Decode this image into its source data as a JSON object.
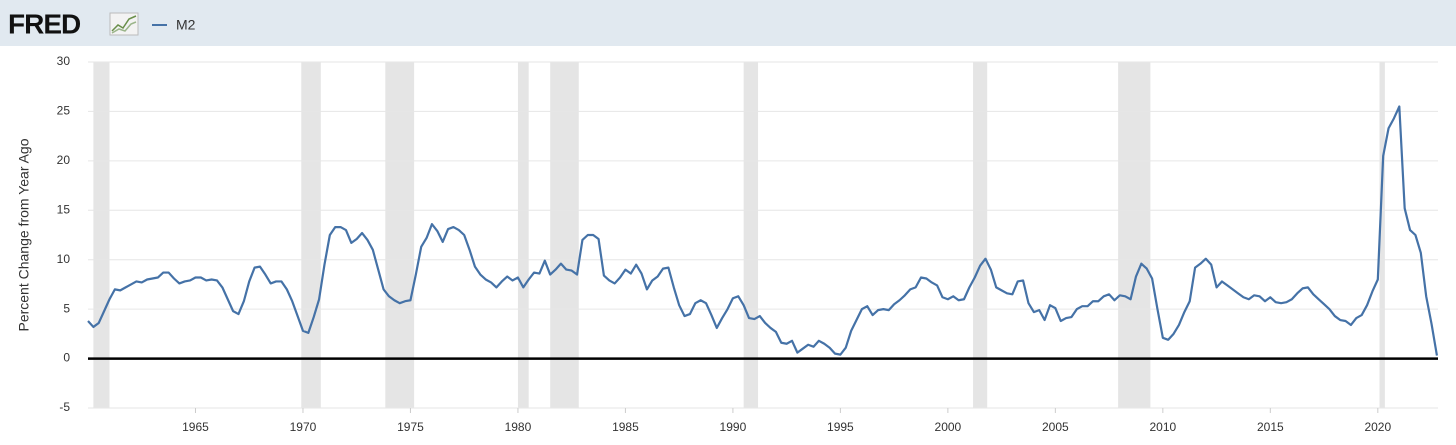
{
  "logo": "FRED",
  "chart_data": {
    "type": "line",
    "ylabel": "Percent Change from Year Ago",
    "x": [
      1960,
      1960.25,
      1960.5,
      1960.75,
      1961,
      1961.25,
      1961.5,
      1961.75,
      1962,
      1962.25,
      1962.5,
      1962.75,
      1963,
      1963.25,
      1963.5,
      1963.75,
      1964,
      1964.25,
      1964.5,
      1964.75,
      1965,
      1965.25,
      1965.5,
      1965.75,
      1966,
      1966.25,
      1966.5,
      1966.75,
      1967,
      1967.25,
      1967.5,
      1967.75,
      1968,
      1968.25,
      1968.5,
      1968.75,
      1969,
      1969.25,
      1969.5,
      1969.75,
      1970,
      1970.25,
      1970.5,
      1970.75,
      1971,
      1971.25,
      1971.5,
      1971.75,
      1972,
      1972.25,
      1972.5,
      1972.75,
      1973,
      1973.25,
      1973.5,
      1973.75,
      1974,
      1974.25,
      1974.5,
      1974.75,
      1975,
      1975.25,
      1975.5,
      1975.75,
      1976,
      1976.25,
      1976.5,
      1976.75,
      1977,
      1977.25,
      1977.5,
      1977.75,
      1978,
      1978.25,
      1978.5,
      1978.75,
      1979,
      1979.25,
      1979.5,
      1979.75,
      1980,
      1980.25,
      1980.5,
      1980.75,
      1981,
      1981.25,
      1981.5,
      1981.75,
      1982,
      1982.25,
      1982.5,
      1982.75,
      1983,
      1983.25,
      1983.5,
      1983.75,
      1984,
      1984.25,
      1984.5,
      1984.75,
      1985,
      1985.25,
      1985.5,
      1985.75,
      1986,
      1986.25,
      1986.5,
      1986.75,
      1987,
      1987.25,
      1987.5,
      1987.75,
      1988,
      1988.25,
      1988.5,
      1988.75,
      1989,
      1989.25,
      1989.5,
      1989.75,
      1990,
      1990.25,
      1990.5,
      1990.75,
      1991,
      1991.25,
      1991.5,
      1991.75,
      1992,
      1992.25,
      1992.5,
      1992.75,
      1993,
      1993.25,
      1993.5,
      1993.75,
      1994,
      1994.25,
      1994.5,
      1994.75,
      1995,
      1995.25,
      1995.5,
      1995.75,
      1996,
      1996.25,
      1996.5,
      1996.75,
      1997,
      1997.25,
      1997.5,
      1997.75,
      1998,
      1998.25,
      1998.5,
      1998.75,
      1999,
      1999.25,
      1999.5,
      1999.75,
      2000,
      2000.25,
      2000.5,
      2000.75,
      2001,
      2001.25,
      2001.5,
      2001.75,
      2002,
      2002.25,
      2002.5,
      2002.75,
      2003,
      2003.25,
      2003.5,
      2003.75,
      2004,
      2004.25,
      2004.5,
      2004.75,
      2005,
      2005.25,
      2005.5,
      2005.75,
      2006,
      2006.25,
      2006.5,
      2006.75,
      2007,
      2007.25,
      2007.5,
      2007.75,
      2008,
      2008.25,
      2008.5,
      2008.75,
      2009,
      2009.25,
      2009.5,
      2009.75,
      2010,
      2010.25,
      2010.5,
      2010.75,
      2011,
      2011.25,
      2011.5,
      2011.75,
      2012,
      2012.25,
      2012.5,
      2012.75,
      2013,
      2013.25,
      2013.5,
      2013.75,
      2014,
      2014.25,
      2014.5,
      2014.75,
      2015,
      2015.25,
      2015.5,
      2015.75,
      2016,
      2016.25,
      2016.5,
      2016.75,
      2017,
      2017.25,
      2017.5,
      2017.75,
      2018,
      2018.25,
      2018.5,
      2018.75,
      2019,
      2019.25,
      2019.5,
      2019.75,
      2020,
      2020.25,
      2020.5,
      2020.75,
      2021,
      2021.25,
      2021.5,
      2021.75,
      2022,
      2022.25,
      2022.5,
      2022.75
    ],
    "series": [
      {
        "name": "M2",
        "color": "#4572a7",
        "values": [
          3.8,
          3.2,
          3.6,
          4.8,
          6.0,
          7.0,
          6.9,
          7.2,
          7.5,
          7.8,
          7.7,
          8.0,
          8.1,
          8.2,
          8.7,
          8.7,
          8.1,
          7.6,
          7.8,
          7.9,
          8.2,
          8.2,
          7.9,
          8.0,
          7.9,
          7.2,
          6.0,
          4.8,
          4.5,
          5.8,
          7.8,
          9.2,
          9.3,
          8.5,
          7.6,
          7.8,
          7.8,
          7.0,
          5.8,
          4.3,
          2.8,
          2.6,
          4.2,
          6.0,
          9.5,
          12.5,
          13.3,
          13.3,
          13.0,
          11.7,
          12.1,
          12.7,
          12.0,
          11.0,
          9.0,
          7.0,
          6.3,
          5.9,
          5.6,
          5.8,
          5.9,
          8.5,
          11.3,
          12.2,
          13.6,
          12.9,
          11.8,
          13.1,
          13.3,
          13.0,
          12.5,
          11.0,
          9.3,
          8.5,
          8.0,
          7.7,
          7.2,
          7.8,
          8.3,
          7.9,
          8.2,
          7.2,
          8.0,
          8.7,
          8.6,
          9.9,
          8.5,
          9.0,
          9.6,
          9.0,
          8.9,
          8.5,
          12.0,
          12.5,
          12.5,
          12.1,
          8.4,
          7.9,
          7.6,
          8.2,
          9.0,
          8.6,
          9.5,
          8.6,
          7.0,
          7.9,
          8.3,
          9.1,
          9.2,
          7.2,
          5.4,
          4.3,
          4.5,
          5.6,
          5.9,
          5.6,
          4.4,
          3.1,
          4.1,
          5.0,
          6.1,
          6.3,
          5.4,
          4.1,
          4.0,
          4.3,
          3.6,
          3.1,
          2.7,
          1.6,
          1.5,
          1.8,
          0.6,
          1.0,
          1.4,
          1.2,
          1.8,
          1.5,
          1.1,
          0.5,
          0.4,
          1.1,
          2.8,
          3.9,
          5.0,
          5.3,
          4.4,
          4.9,
          5.0,
          4.9,
          5.5,
          5.9,
          6.4,
          7.0,
          7.2,
          8.2,
          8.1,
          7.7,
          7.4,
          6.2,
          6.0,
          6.3,
          5.9,
          6.0,
          7.2,
          8.2,
          9.4,
          10.1,
          9.0,
          7.2,
          6.9,
          6.6,
          6.5,
          7.8,
          7.9,
          5.6,
          4.7,
          4.9,
          3.9,
          5.4,
          5.1,
          3.8,
          4.1,
          4.2,
          5.0,
          5.3,
          5.3,
          5.8,
          5.8,
          6.3,
          6.5,
          5.9,
          6.4,
          6.3,
          6.0,
          8.3,
          9.6,
          9.1,
          8.1,
          5.0,
          2.1,
          1.9,
          2.5,
          3.4,
          4.7,
          5.8,
          9.2,
          9.6,
          10.1,
          9.5,
          7.2,
          7.8,
          7.4,
          7.0,
          6.6,
          6.2,
          6.0,
          6.4,
          6.3,
          5.8,
          6.2,
          5.7,
          5.6,
          5.7,
          6.0,
          6.6,
          7.1,
          7.2,
          6.5,
          6.0,
          5.5,
          5.0,
          4.3,
          3.9,
          3.8,
          3.4,
          4.1,
          4.4,
          5.4,
          6.8,
          8.0,
          20.5,
          23.3,
          24.3,
          25.5,
          15.2,
          13.0,
          12.5,
          10.7,
          6.3,
          3.5,
          0.3
        ]
      }
    ],
    "recessions": [
      [
        1960.25,
        1961.0
      ],
      [
        1969.92,
        1970.83
      ],
      [
        1973.83,
        1975.17
      ],
      [
        1980.0,
        1980.5
      ],
      [
        1981.5,
        1982.83
      ],
      [
        1990.5,
        1991.17
      ],
      [
        2001.17,
        2001.83
      ],
      [
        2007.92,
        2009.42
      ],
      [
        2020.08,
        2020.33
      ]
    ],
    "recession_color": "#e5e5e5",
    "xlim": [
      1960,
      2022.8
    ],
    "xticks": [
      1965,
      1970,
      1975,
      1980,
      1985,
      1990,
      1995,
      2000,
      2005,
      2010,
      2015,
      2020
    ],
    "ylim": [
      -5,
      30
    ],
    "yticks": [
      -5,
      0,
      5,
      10,
      15,
      20,
      25,
      30
    ],
    "grid": true
  }
}
